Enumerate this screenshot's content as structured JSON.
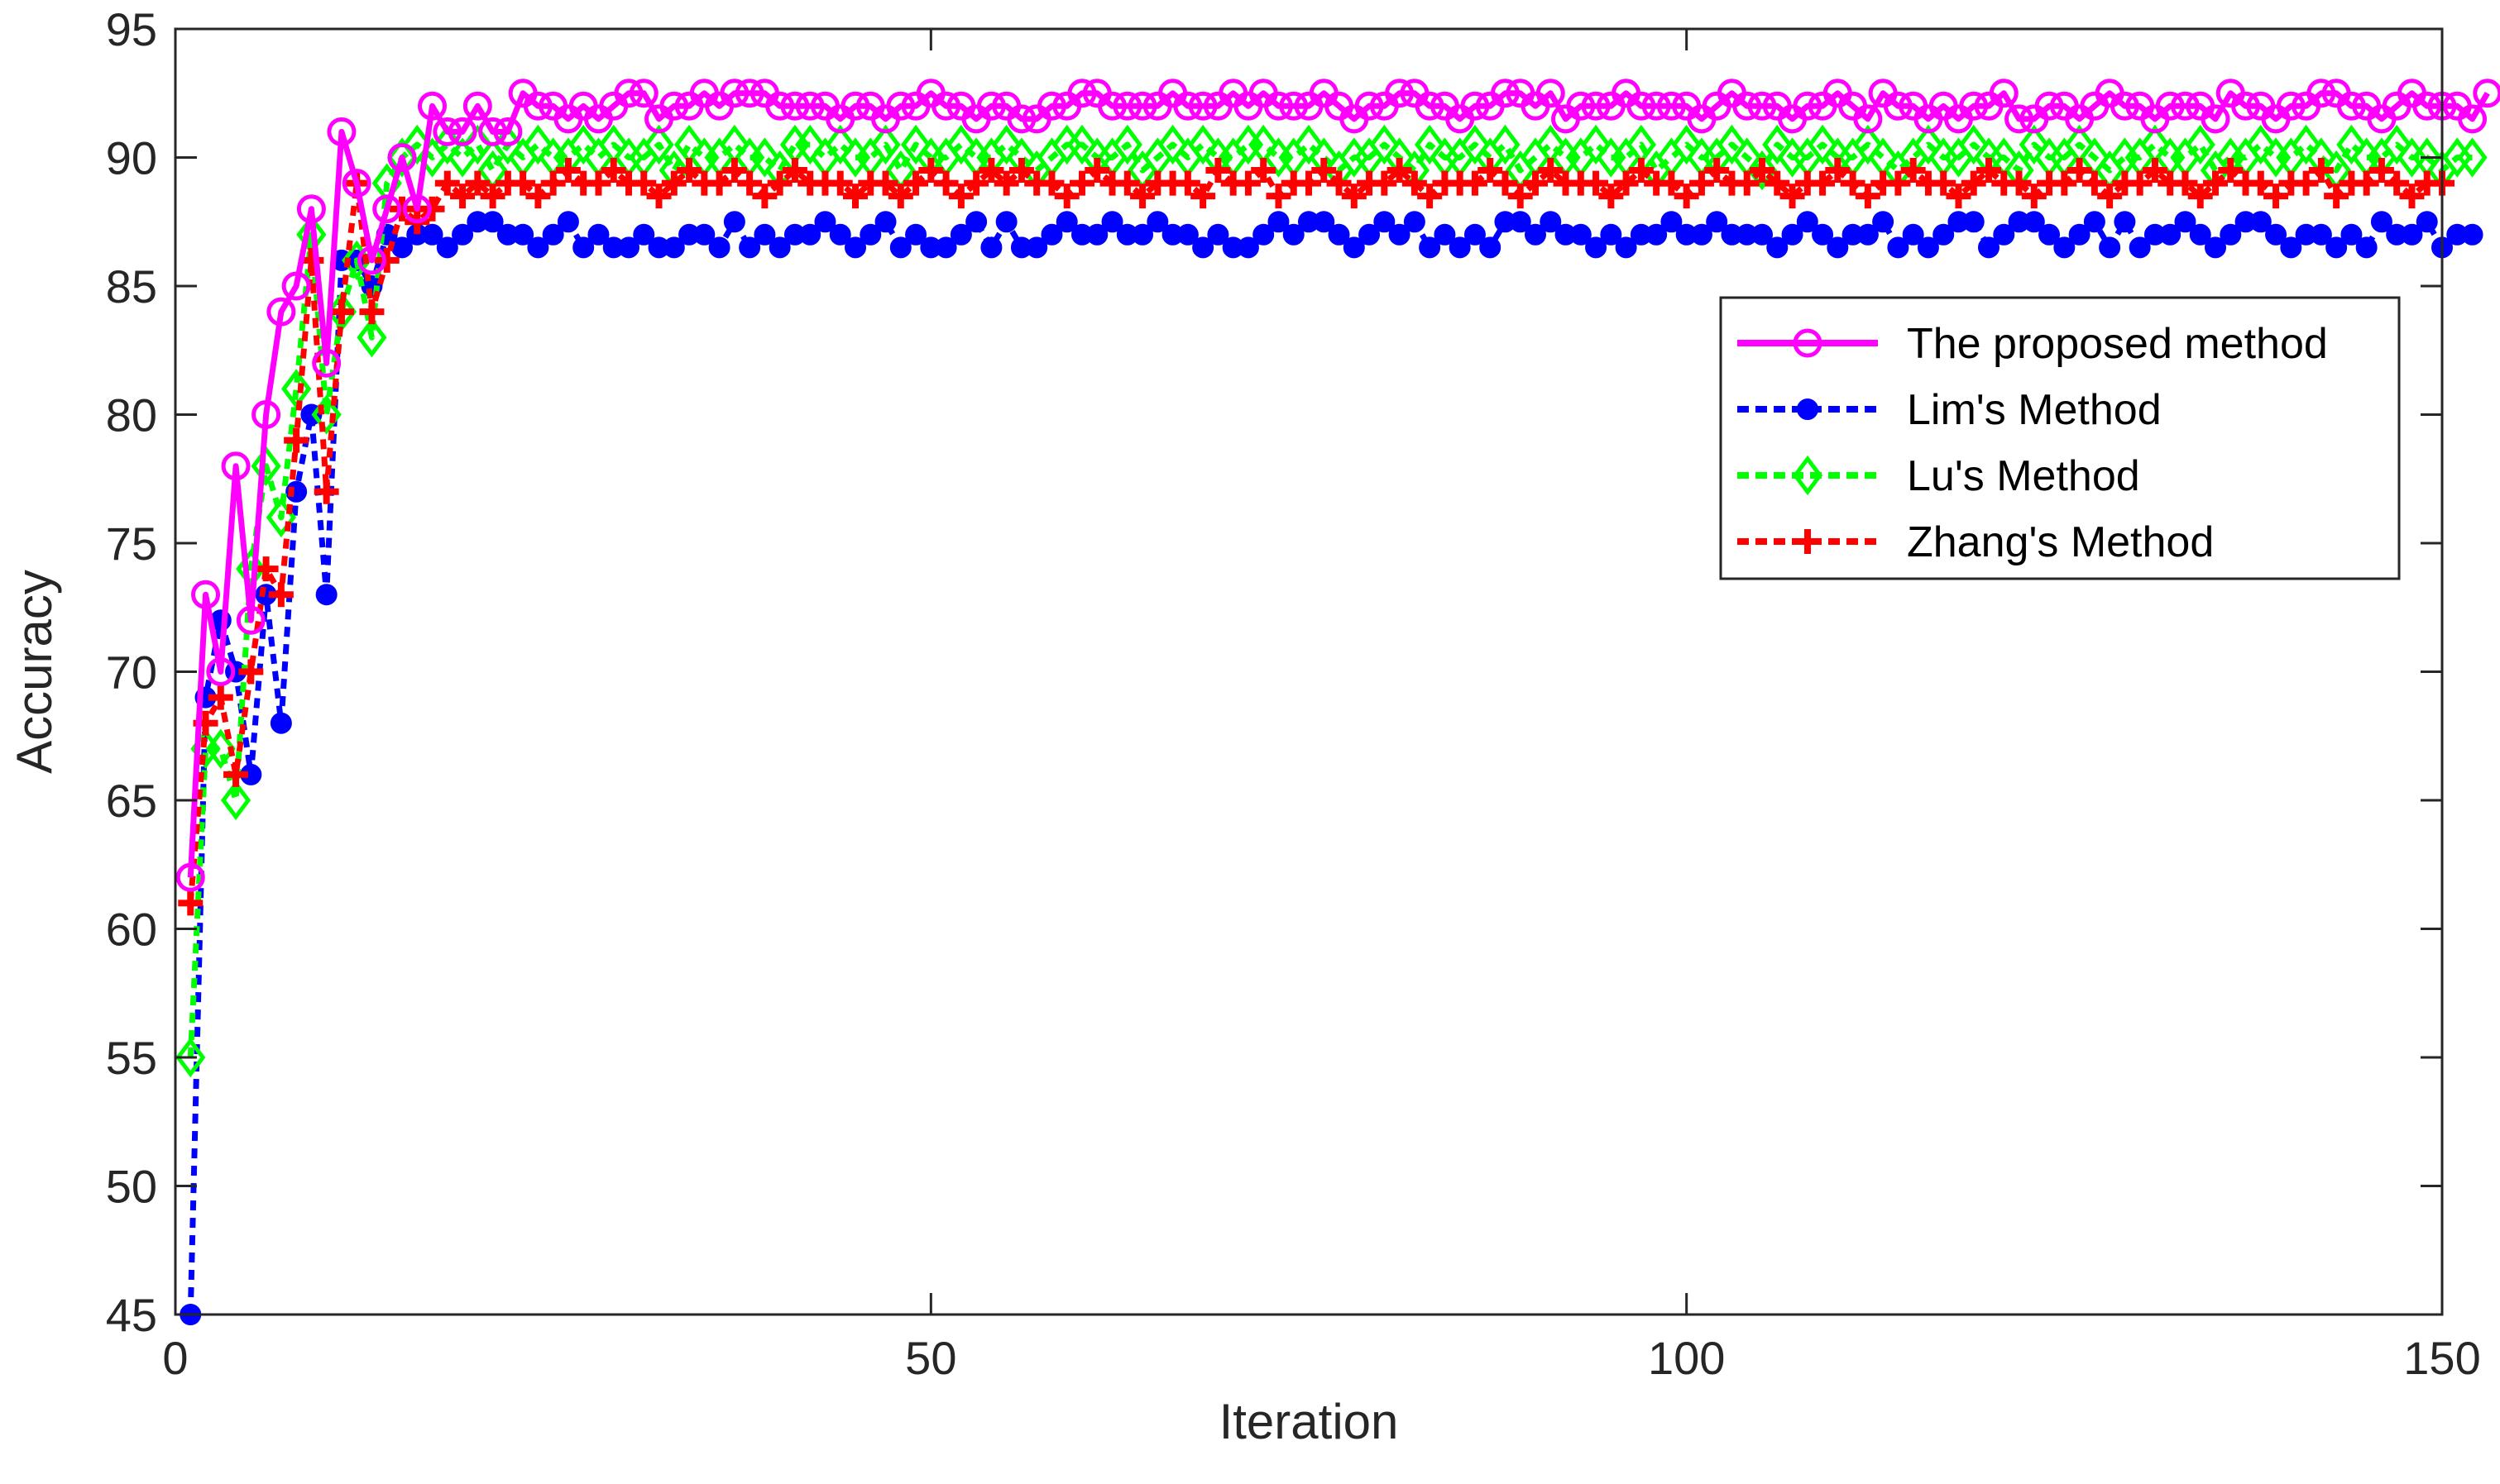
{
  "chart_data": {
    "type": "line",
    "title": "",
    "xlabel": "Iteration",
    "ylabel": "Accuracy",
    "xlim": [
      0,
      150
    ],
    "ylim": [
      45,
      95
    ],
    "xticks": [
      0,
      50,
      100,
      150
    ],
    "yticks": [
      45,
      50,
      55,
      60,
      65,
      70,
      75,
      80,
      85,
      90,
      95
    ],
    "grid": false,
    "legend_position": "upper-right",
    "series": [
      {
        "name": "The proposed method",
        "color": "#ff00ff",
        "line_style": "solid",
        "marker": "circle-open",
        "values": [
          62,
          73,
          70,
          78,
          72,
          80,
          84,
          85,
          88,
          82,
          91,
          89,
          86,
          88,
          90,
          88,
          92,
          91,
          91,
          92,
          91,
          91,
          92.5,
          92,
          92,
          91.5,
          92,
          91.5,
          92,
          92.5,
          92.5,
          91.5,
          92,
          92,
          92.5,
          92,
          92.5,
          92.5,
          92.5,
          92,
          92,
          92,
          92,
          91.5,
          92,
          92,
          91.5,
          92,
          92,
          92.5,
          92,
          92,
          91.5,
          92,
          92,
          91.5,
          91.5,
          92,
          92,
          92.5,
          92.5,
          92,
          92,
          92,
          92,
          92.5,
          92,
          92,
          92,
          92.5,
          92,
          92.5,
          92,
          92,
          92,
          92.5,
          92,
          91.5,
          92,
          92,
          92.5,
          92.5,
          92,
          92,
          91.5,
          92,
          92,
          92.5,
          92.5,
          92,
          92.5,
          91.5,
          92,
          92,
          92,
          92.5,
          92,
          92,
          92,
          92,
          91.5,
          92,
          92.5,
          92,
          92,
          92,
          91.5,
          92,
          92,
          92.5,
          92,
          91.5,
          92.5,
          92,
          92,
          91.5,
          92,
          91.5,
          92,
          92,
          92.5,
          91.5,
          91.5,
          92,
          92,
          91.5,
          92,
          92.5,
          92,
          92,
          91.5,
          92,
          92,
          92,
          91.5,
          92.5,
          92,
          92,
          91.5,
          92,
          92,
          92.5,
          92.5,
          92,
          92,
          91.5,
          92,
          92.5,
          92,
          92,
          92,
          91.5,
          92.5
        ]
      },
      {
        "name": "Lim's Method",
        "color": "#0000ff",
        "line_style": "dotted",
        "marker": "dot",
        "values": [
          45,
          69,
          72,
          70,
          66,
          73,
          68,
          77,
          80,
          73,
          86,
          86,
          85,
          87,
          86.5,
          87,
          87,
          86.5,
          87,
          87.5,
          87.5,
          87,
          87,
          86.5,
          87,
          87.5,
          86.5,
          87,
          86.5,
          86.5,
          87,
          86.5,
          86.5,
          87,
          87,
          86.5,
          87.5,
          86.5,
          87,
          86.5,
          87,
          87,
          87.5,
          87,
          86.5,
          87,
          87.5,
          86.5,
          87,
          86.5,
          86.5,
          87,
          87.5,
          86.5,
          87.5,
          86.5,
          86.5,
          87,
          87.5,
          87,
          87,
          87.5,
          87,
          87,
          87.5,
          87,
          87,
          86.5,
          87,
          86.5,
          86.5,
          87,
          87.5,
          87,
          87.5,
          87.5,
          87,
          86.5,
          87,
          87.5,
          87,
          87.5,
          86.5,
          87,
          86.5,
          87,
          86.5,
          87.5,
          87.5,
          87,
          87.5,
          87,
          87,
          86.5,
          87,
          86.5,
          87,
          87,
          87.5,
          87,
          87,
          87.5,
          87,
          87,
          87,
          86.5,
          87,
          87.5,
          87,
          86.5,
          87,
          87,
          87.5,
          86.5,
          87,
          86.5,
          87,
          87.5,
          87.5,
          86.5,
          87,
          87.5,
          87.5,
          87,
          86.5,
          87,
          87.5,
          86.5,
          87.5,
          86.5,
          87,
          87,
          87.5,
          87,
          86.5,
          87,
          87.5,
          87.5,
          87,
          86.5,
          87,
          87,
          86.5,
          87,
          86.5,
          87.5,
          87,
          87,
          87.5,
          86.5,
          87,
          87
        ]
      },
      {
        "name": "Lu's Method",
        "color": "#00ff00",
        "line_style": "dotted",
        "marker": "diamond",
        "values": [
          55,
          67,
          67,
          65,
          74,
          78,
          76,
          81,
          87,
          80,
          84,
          86,
          83,
          89,
          90,
          90.5,
          90,
          90.5,
          90,
          90.5,
          89.5,
          90.5,
          90,
          90.5,
          90,
          90,
          90.5,
          90,
          90.5,
          90,
          90,
          90.5,
          89.5,
          90.5,
          90,
          90,
          90.5,
          90,
          90,
          89.5,
          90.5,
          90.5,
          90,
          90.5,
          90,
          90,
          90.5,
          89.5,
          90.5,
          90,
          90,
          90.5,
          90,
          90,
          90.5,
          90,
          89.5,
          90,
          90.5,
          90.5,
          90,
          90,
          90.5,
          89.5,
          90,
          90.5,
          90,
          90.5,
          90,
          90,
          90.5,
          90.5,
          90,
          90,
          90.5,
          90,
          89.5,
          90,
          90,
          90.5,
          90,
          89.5,
          90.5,
          90,
          90,
          90.5,
          90,
          90.5,
          89.5,
          90,
          90.5,
          90,
          90,
          90.5,
          90,
          90,
          90.5,
          89.5,
          90,
          90.5,
          90,
          90,
          90.5,
          90,
          89.5,
          90.5,
          90,
          90,
          90.5,
          90,
          90,
          90.5,
          90,
          89.5,
          90,
          90.5,
          90,
          90,
          90.5,
          90,
          90,
          89.5,
          90.5,
          90,
          90,
          90.5,
          90,
          89.5,
          90,
          90,
          90.5,
          90,
          90,
          90.5,
          89.5,
          90,
          90,
          90.5,
          90,
          90,
          90.5,
          90,
          89.5,
          90.5,
          90,
          90,
          90.5,
          90,
          90,
          89.5,
          90,
          90
        ]
      },
      {
        "name": "Zhang's Method",
        "color": "#ff0000",
        "line_style": "dotted",
        "marker": "plus",
        "values": [
          61,
          68,
          69,
          66,
          70,
          74,
          73,
          79,
          86,
          77,
          84,
          89,
          84,
          86,
          88,
          87.5,
          88,
          89,
          88.5,
          89,
          88.5,
          89,
          89,
          88.5,
          89,
          89.5,
          89,
          89,
          89.5,
          89,
          89,
          88.5,
          89,
          89.5,
          89,
          89,
          89.5,
          89,
          88.5,
          89,
          89.5,
          89,
          89,
          89,
          88.5,
          89,
          89,
          88.5,
          89,
          89.5,
          89,
          88.5,
          89,
          89.5,
          89,
          89.5,
          89,
          89,
          88.5,
          89,
          89.5,
          89,
          89,
          88.5,
          89,
          89,
          89,
          88.5,
          89.5,
          89,
          89,
          89.5,
          88.5,
          89,
          89,
          89.5,
          89,
          88.5,
          89,
          89,
          89.5,
          89,
          88.5,
          89,
          89,
          89,
          89.5,
          89,
          88.5,
          89,
          89.5,
          89,
          89,
          89,
          88.5,
          89,
          89.5,
          89,
          89,
          88.5,
          89,
          89.5,
          89,
          89,
          89.5,
          89,
          88.5,
          89,
          89,
          89.5,
          89,
          88.5,
          89,
          89,
          89.5,
          89,
          89,
          88.5,
          89,
          89.5,
          89,
          89,
          88.5,
          89,
          89,
          89.5,
          89,
          88.5,
          89,
          89,
          89.5,
          89,
          89,
          88.5,
          89,
          89.5,
          89,
          89,
          88.5,
          89,
          89,
          89.5,
          88.5,
          89,
          89,
          89.5,
          89,
          88.5,
          89,
          89
        ]
      }
    ]
  }
}
